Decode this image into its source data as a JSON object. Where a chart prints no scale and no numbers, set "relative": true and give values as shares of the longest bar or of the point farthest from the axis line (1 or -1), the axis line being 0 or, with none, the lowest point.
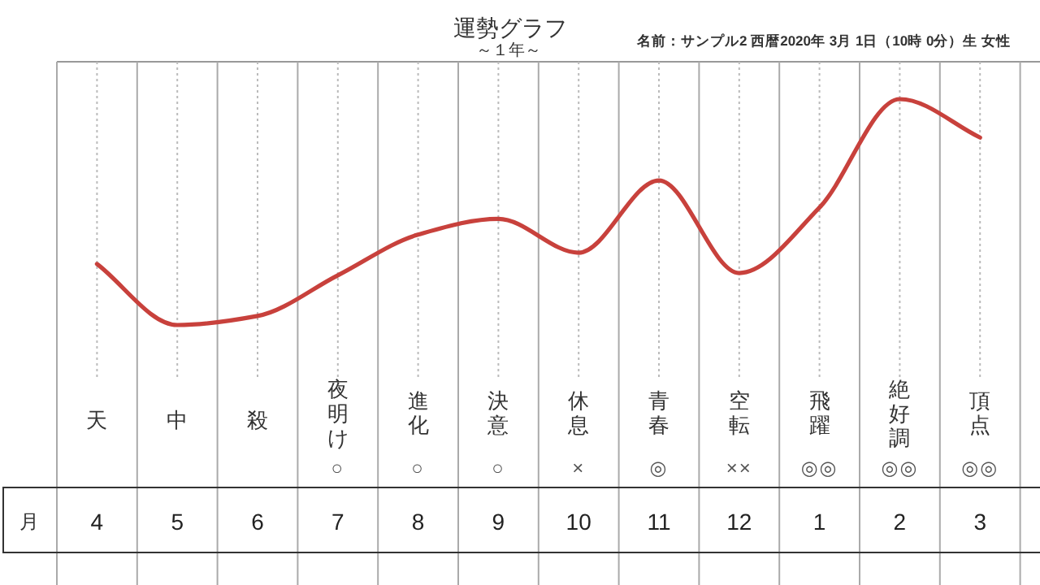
{
  "chart_data": {
    "type": "line",
    "title": "運勢グラフ",
    "subtitle": "～１年～",
    "relative": true,
    "categories": [
      "4",
      "5",
      "6",
      "7",
      "8",
      "9",
      "10",
      "11",
      "12",
      "1",
      "2",
      "3"
    ],
    "series": [
      {
        "color": "#c8413c",
        "values": [
          0.27,
          0,
          0.04,
          0.22,
          0.4,
          0.47,
          0.32,
          0.64,
          0.23,
          0.52,
          1.0,
          0.83
        ]
      }
    ],
    "annotations": [
      "名前：サンプル2 西暦2020年 3月 1日（10時 0分）生 女性",
      "月",
      "天",
      "中",
      "殺",
      "夜明け\n○",
      "進化\n○",
      "決意\n○",
      "休息\n×",
      "青春\n◎",
      "空転\n××",
      "飛躍\n◎◎",
      "絶好調\n◎◎",
      "頂点\n◎◎"
    ],
    "grid": "x"
  }
}
